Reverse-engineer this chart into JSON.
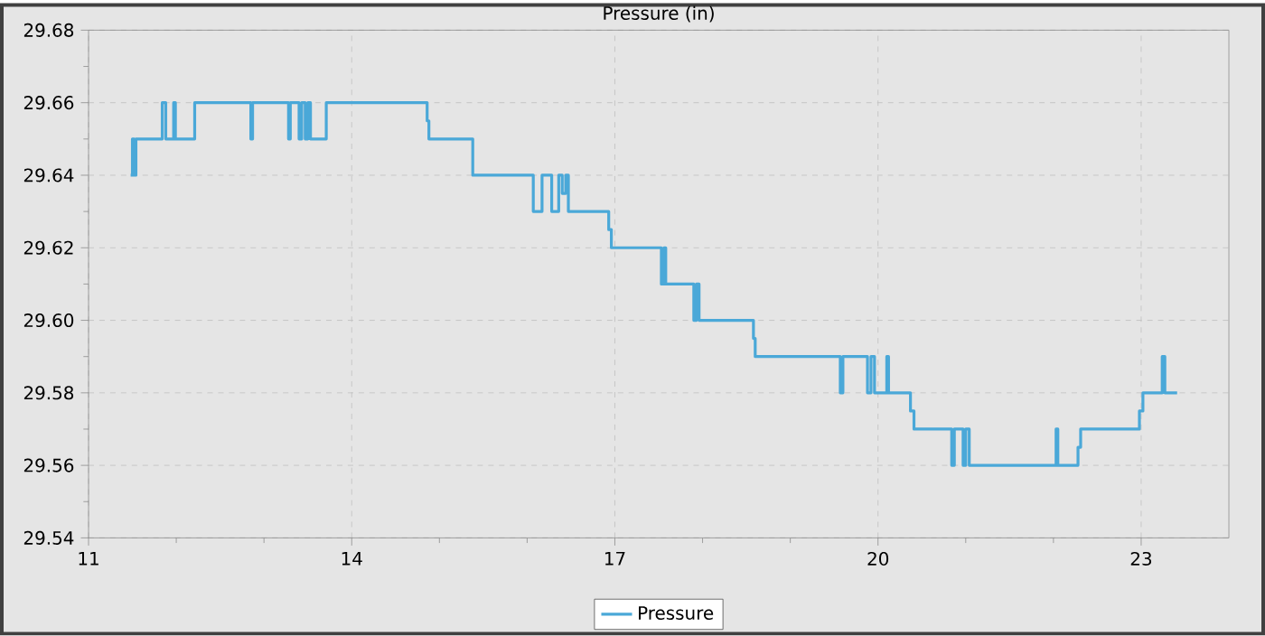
{
  "chart_data": {
    "type": "step",
    "title": "Pressure (in)",
    "x": [
      11.48,
      11.5,
      11.52,
      11.54,
      11.84,
      11.88,
      11.97,
      11.99,
      12.21,
      12.85,
      12.87,
      13.28,
      13.3,
      13.4,
      13.43,
      13.47,
      13.5,
      13.53,
      13.71,
      14.86,
      14.88,
      15.38,
      16.07,
      16.17,
      16.28,
      16.36,
      16.4,
      16.44,
      16.47,
      16.93,
      16.96,
      17.53,
      17.56,
      17.58,
      17.9,
      17.93,
      17.96,
      18.58,
      18.6,
      19.57,
      19.6,
      19.88,
      19.92,
      19.96,
      20.1,
      20.12,
      20.37,
      20.41,
      20.84,
      20.87,
      20.97,
      21.0,
      21.04,
      22.03,
      22.05,
      22.28,
      22.31,
      22.98,
      23.02,
      23.24,
      23.27,
      23.41
    ],
    "series": [
      {
        "name": "Pressure",
        "color": "#4aa8d8",
        "values": [
          29.64,
          29.65,
          29.64,
          29.65,
          29.66,
          29.65,
          29.66,
          29.65,
          29.66,
          29.65,
          29.66,
          29.65,
          29.66,
          29.65,
          29.66,
          29.65,
          29.66,
          29.65,
          29.66,
          29.655,
          29.65,
          29.64,
          29.63,
          29.64,
          29.63,
          29.64,
          29.635,
          29.64,
          29.63,
          29.625,
          29.62,
          29.61,
          29.62,
          29.61,
          29.6,
          29.61,
          29.6,
          29.595,
          29.59,
          29.58,
          29.59,
          29.58,
          29.59,
          29.58,
          29.59,
          29.58,
          29.575,
          29.57,
          29.56,
          29.57,
          29.56,
          29.57,
          29.56,
          29.57,
          29.56,
          29.565,
          29.57,
          29.575,
          29.58,
          29.59,
          29.58,
          29.58
        ]
      }
    ],
    "xlim": [
      11,
      24
    ],
    "ylim": [
      29.54,
      29.68
    ],
    "xticks": [
      11,
      14,
      17,
      20,
      23
    ],
    "yticks": [
      29.54,
      29.56,
      29.58,
      {
        "value": 29.6,
        "label": "29.60"
      },
      29.62,
      29.64,
      29.66,
      29.68
    ],
    "grid": true,
    "legend": "bottom"
  }
}
